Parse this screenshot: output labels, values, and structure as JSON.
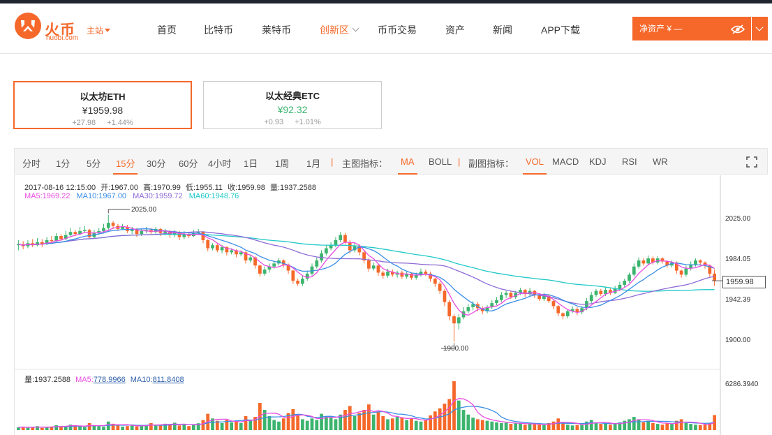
{
  "brand": {
    "name": "火币",
    "domain": "huobi.com",
    "station": "主站"
  },
  "nav": [
    {
      "label": "首页",
      "active": false
    },
    {
      "label": "比特币",
      "active": false
    },
    {
      "label": "莱特币",
      "active": false
    },
    {
      "label": "创新区",
      "active": true,
      "dropdown": true
    },
    {
      "label": "币币交易",
      "active": false
    },
    {
      "label": "资产",
      "active": false
    },
    {
      "label": "新闻",
      "active": false
    },
    {
      "label": "APP下载",
      "active": false
    }
  ],
  "asset": {
    "label": "净资产 ¥ —"
  },
  "coins": [
    {
      "name": "以太坊ETH",
      "price": "¥1959.98",
      "change": "+27.98",
      "percent": "+1.44%",
      "active": true
    },
    {
      "name": "以太经典ETC",
      "price": "¥92.32",
      "change": "+0.93",
      "percent": "+1.01%",
      "active": false
    }
  ],
  "toolbar": {
    "periods": [
      "分时",
      "1分",
      "5分",
      "15分",
      "30分",
      "60分",
      "4小时",
      "1日",
      "1周",
      "1月"
    ],
    "selected_period": "15分",
    "main_label": "主图指标：",
    "main_indicators": [
      "MA",
      "BOLL"
    ],
    "selected_main": "MA",
    "sub_label": "副图指标：",
    "sub_indicators": [
      "VOL",
      "MACD",
      "KDJ",
      "RSI",
      "WR"
    ],
    "selected_sub": "VOL"
  },
  "info": {
    "datetime": "2017-08-16 12:15:00",
    "open": "开:1967.00",
    "high": "高:1970.99",
    "low": "低:1955.11",
    "close": "收:1959.98",
    "volume": "量:1937.2588",
    "ma5": "MA5:1969.22",
    "ma10": "MA10:1967.00",
    "ma30": "MA30:1959.72",
    "ma60": "MA60:1948.76"
  },
  "vol_info": {
    "volume": "量:1937.2588",
    "ma5_label": "MA5:",
    "ma5_value": "778.9966",
    "ma10_label": "MA10:",
    "ma10_value": "811.8408"
  },
  "axis": {
    "price_ticks": [
      "2025.00",
      "1984.05",
      "1942.39",
      "1900.00"
    ],
    "last_price": "1959.98",
    "volume_top": "6286.3940",
    "high_marker": "2025.00",
    "low_marker": "1900.00"
  },
  "colors": {
    "accent": "#f5682a",
    "up": "#3cb46e",
    "down": "#f5682a",
    "ma5": "#e84de0",
    "ma10": "#3a8ee6",
    "ma30": "#8e6bd6",
    "ma60": "#1fc8c8"
  },
  "chart_data": {
    "type": "candlestick",
    "price_range": [
      1892,
      2035
    ],
    "volume_max": 6286.394,
    "candles": [
      [
        1995,
        1996,
        2000,
        1990
      ],
      [
        1996,
        1994,
        1999,
        1991
      ],
      [
        1994,
        1997,
        2000,
        1992
      ],
      [
        1997,
        1995,
        2001,
        1993
      ],
      [
        1995,
        1998,
        2002,
        1994
      ],
      [
        1998,
        1996,
        2001,
        1993
      ],
      [
        1996,
        2000,
        2003,
        1995
      ],
      [
        2000,
        1999,
        2004,
        1997
      ],
      [
        1999,
        2004,
        2007,
        1998
      ],
      [
        2004,
        2001,
        2006,
        1999
      ],
      [
        2001,
        2005,
        2009,
        2000
      ],
      [
        2005,
        2008,
        2012,
        2003
      ],
      [
        2008,
        2006,
        2010,
        2004
      ],
      [
        2006,
        2009,
        2013,
        2005
      ],
      [
        2009,
        2010,
        2014,
        2007
      ],
      [
        2010,
        2003,
        2011,
        2001
      ],
      [
        2003,
        2007,
        2010,
        2002
      ],
      [
        2007,
        2009,
        2012,
        2005
      ],
      [
        2009,
        2012,
        2016,
        2007
      ],
      [
        2012,
        2017,
        2025,
        2010
      ],
      [
        2017,
        2014,
        2019,
        2011
      ],
      [
        2014,
        2011,
        2016,
        2009
      ],
      [
        2011,
        2013,
        2016,
        2010
      ],
      [
        2013,
        2009,
        2015,
        2007
      ],
      [
        2009,
        2011,
        2013,
        2006
      ],
      [
        2011,
        2006,
        2012,
        2003
      ],
      [
        2006,
        2009,
        2011,
        2004
      ],
      [
        2009,
        2010,
        2013,
        2007
      ],
      [
        2010,
        2008,
        2012,
        2006
      ],
      [
        2008,
        2011,
        2013,
        2006
      ],
      [
        2011,
        2007,
        2012,
        2004
      ],
      [
        2007,
        2009,
        2011,
        2005
      ],
      [
        2009,
        2005,
        2010,
        2002
      ],
      [
        2005,
        2008,
        2010,
        2003
      ],
      [
        2008,
        2003,
        2009,
        2000
      ],
      [
        2003,
        2006,
        2009,
        2001
      ],
      [
        2006,
        2004,
        2008,
        2002
      ],
      [
        2004,
        2007,
        2010,
        2003
      ],
      [
        2007,
        2008,
        2011,
        2005
      ],
      [
        2008,
        2000,
        2009,
        1997
      ],
      [
        2000,
        1992,
        2001,
        1989
      ],
      [
        1992,
        1995,
        1997,
        1990
      ],
      [
        1995,
        1990,
        1997,
        1988
      ],
      [
        1990,
        1993,
        1995,
        1987
      ],
      [
        1993,
        1988,
        1994,
        1985
      ],
      [
        1988,
        1990,
        1992,
        1986
      ],
      [
        1990,
        1986,
        1991,
        1983
      ],
      [
        1986,
        1988,
        1990,
        1984
      ],
      [
        1988,
        1980,
        1989,
        1977
      ],
      [
        1980,
        1983,
        1985,
        1978
      ],
      [
        1983,
        1975,
        1984,
        1972
      ],
      [
        1975,
        1967,
        1976,
        1964
      ],
      [
        1967,
        1971,
        1974,
        1965
      ],
      [
        1971,
        1974,
        1977,
        1968
      ],
      [
        1974,
        1977,
        1979,
        1972
      ],
      [
        1977,
        1980,
        1982,
        1975
      ],
      [
        1980,
        1976,
        1981,
        1973
      ],
      [
        1976,
        1970,
        1977,
        1967
      ],
      [
        1970,
        1960,
        1971,
        1957
      ],
      [
        1960,
        1957,
        1962,
        1955
      ],
      [
        1957,
        1962,
        1965,
        1955
      ],
      [
        1962,
        1967,
        1970,
        1960
      ],
      [
        1967,
        1974,
        1977,
        1965
      ],
      [
        1974,
        1980,
        1983,
        1972
      ],
      [
        1980,
        1987,
        1990,
        1978
      ],
      [
        1987,
        1992,
        1995,
        1985
      ],
      [
        1992,
        1995,
        1998,
        1990
      ],
      [
        1995,
        2000,
        2003,
        1993
      ],
      [
        2000,
        2005,
        2008,
        1998
      ],
      [
        2005,
        1998,
        2007,
        1996
      ],
      [
        1998,
        1990,
        2000,
        1987
      ],
      [
        1990,
        1994,
        1997,
        1988
      ],
      [
        1994,
        1988,
        1996,
        1985
      ],
      [
        1988,
        1980,
        1990,
        1977
      ],
      [
        1980,
        1972,
        1982,
        1969
      ],
      [
        1972,
        1975,
        1978,
        1970
      ],
      [
        1975,
        1968,
        1977,
        1965
      ],
      [
        1968,
        1965,
        1970,
        1962
      ],
      [
        1965,
        1969,
        1972,
        1963
      ],
      [
        1969,
        1966,
        1971,
        1964
      ],
      [
        1966,
        1968,
        1970,
        1963
      ],
      [
        1968,
        1964,
        1970,
        1962
      ],
      [
        1964,
        1967,
        1969,
        1962
      ],
      [
        1967,
        1963,
        1968,
        1961
      ],
      [
        1963,
        1966,
        1968,
        1961
      ],
      [
        1966,
        1969,
        1972,
        1964
      ],
      [
        1969,
        1967,
        1971,
        1965
      ],
      [
        1967,
        1962,
        1969,
        1959
      ],
      [
        1962,
        1957,
        1963,
        1954
      ],
      [
        1957,
        1950,
        1959,
        1947
      ],
      [
        1950,
        1939,
        1952,
        1935
      ],
      [
        1939,
        1925,
        1941,
        1921
      ],
      [
        1925,
        1918,
        1927,
        1900
      ],
      [
        1918,
        1924,
        1927,
        1912
      ],
      [
        1924,
        1930,
        1934,
        1922
      ],
      [
        1930,
        1934,
        1937,
        1928
      ],
      [
        1934,
        1937,
        1940,
        1931
      ],
      [
        1937,
        1933,
        1939,
        1930
      ],
      [
        1933,
        1930,
        1935,
        1927
      ],
      [
        1930,
        1934,
        1936,
        1928
      ],
      [
        1934,
        1938,
        1941,
        1932
      ],
      [
        1938,
        1941,
        1944,
        1936
      ],
      [
        1941,
        1946,
        1949,
        1939
      ],
      [
        1946,
        1948,
        1950,
        1943
      ],
      [
        1948,
        1944,
        1950,
        1942
      ],
      [
        1944,
        1948,
        1950,
        1942
      ],
      [
        1948,
        1951,
        1953,
        1946
      ],
      [
        1951,
        1947,
        1952,
        1944
      ],
      [
        1947,
        1950,
        1953,
        1945
      ],
      [
        1950,
        1946,
        1951,
        1943
      ],
      [
        1946,
        1942,
        1947,
        1940
      ],
      [
        1942,
        1945,
        1948,
        1940
      ],
      [
        1945,
        1940,
        1947,
        1938
      ],
      [
        1940,
        1935,
        1941,
        1932
      ],
      [
        1935,
        1928,
        1936,
        1925
      ],
      [
        1928,
        1925,
        1929,
        1922
      ],
      [
        1925,
        1930,
        1932,
        1923
      ],
      [
        1930,
        1932,
        1935,
        1928
      ],
      [
        1932,
        1929,
        1934,
        1926
      ],
      [
        1929,
        1933,
        1935,
        1927
      ],
      [
        1933,
        1940,
        1943,
        1931
      ],
      [
        1940,
        1946,
        1949,
        1938
      ],
      [
        1946,
        1950,
        1952,
        1944
      ],
      [
        1950,
        1947,
        1952,
        1945
      ],
      [
        1947,
        1951,
        1954,
        1945
      ],
      [
        1951,
        1948,
        1953,
        1946
      ],
      [
        1948,
        1952,
        1955,
        1947
      ],
      [
        1952,
        1956,
        1959,
        1950
      ],
      [
        1956,
        1960,
        1962,
        1954
      ],
      [
        1960,
        1966,
        1968,
        1958
      ],
      [
        1966,
        1974,
        1977,
        1964
      ],
      [
        1974,
        1980,
        1983,
        1972
      ],
      [
        1980,
        1977,
        1982,
        1975
      ],
      [
        1977,
        1982,
        1985,
        1975
      ],
      [
        1982,
        1978,
        1984,
        1976
      ],
      [
        1978,
        1982,
        1984,
        1976
      ],
      [
        1982,
        1979,
        1983,
        1977
      ],
      [
        1979,
        1975,
        1980,
        1973
      ],
      [
        1975,
        1978,
        1980,
        1973
      ],
      [
        1978,
        1970,
        1979,
        1967
      ],
      [
        1970,
        1966,
        1971,
        1963
      ],
      [
        1966,
        1972,
        1975,
        1964
      ],
      [
        1972,
        1976,
        1979,
        1970
      ],
      [
        1976,
        1980,
        1982,
        1974
      ],
      [
        1980,
        1978,
        1981,
        1975
      ],
      [
        1978,
        1975,
        1979,
        1972
      ],
      [
        1975,
        1967,
        1976,
        1964
      ],
      [
        1967,
        1960,
        1971,
        1955
      ]
    ],
    "volumes": [
      350,
      420,
      300,
      380,
      510,
      290,
      400,
      460,
      620,
      520,
      480,
      700,
      560,
      450,
      390,
      900,
      640,
      500,
      430,
      1100,
      820,
      600,
      450,
      520,
      700,
      480,
      600,
      560,
      900,
      720,
      650,
      820,
      700,
      950,
      600,
      780,
      520,
      640,
      880,
      1300,
      2100,
      1500,
      1200,
      900,
      1300,
      1000,
      1150,
      900,
      1800,
      1200,
      1700,
      3500,
      2600,
      1800,
      1300,
      1100,
      1500,
      2200,
      2700,
      2000,
      1400,
      1200,
      1500,
      1300,
      2100,
      1800,
      1600,
      1400,
      2000,
      2600,
      3100,
      1800,
      2200,
      2600,
      3300,
      2000,
      2400,
      1800,
      1400,
      1500,
      1700,
      1600,
      1300,
      1500,
      1200,
      1100,
      1300,
      1900,
      2400,
      2800,
      3400,
      4000,
      6286,
      3800,
      2600,
      2000,
      1600,
      1400,
      1300,
      1200,
      1100,
      1000,
      900,
      950,
      800,
      900,
      850,
      700,
      800,
      750,
      700,
      650,
      900,
      1100,
      1500,
      900,
      700,
      600,
      650,
      700,
      1100,
      1300,
      900,
      800,
      900,
      700,
      800,
      1000,
      1200,
      1400,
      1700,
      1400,
      1000,
      1200,
      900,
      800,
      700,
      900,
      800,
      1200,
      1400,
      900,
      800,
      700,
      650,
      700,
      900,
      1937
    ]
  }
}
